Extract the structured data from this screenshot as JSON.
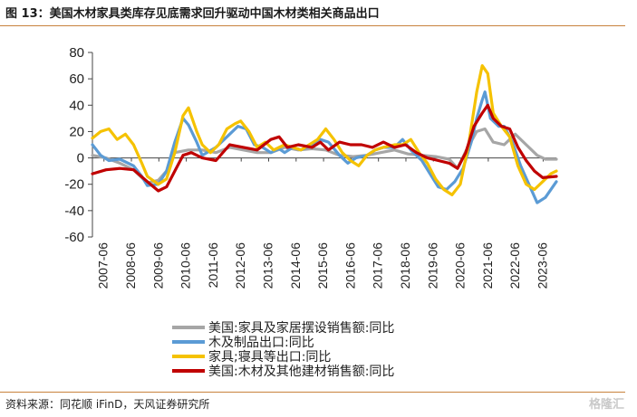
{
  "header": {
    "title": "图 13：美国木材家具类库存见底需求回升驱动中国木材类相关商品出口"
  },
  "footer": {
    "source": "资料来源：同花顺 iFinD，天风证券研究所",
    "watermark": "格隆汇"
  },
  "chart_data": {
    "type": "line",
    "title": "图 13：美国木材家具类库存见底需求回升驱动中国木材类相关商品出口",
    "xlabel": "",
    "ylabel": "",
    "ylim": [
      -60,
      80
    ],
    "yticks": [
      -60,
      -40,
      -20,
      0,
      20,
      40,
      60,
      80
    ],
    "x_tick_labels": [
      "2007-06",
      "2008-06",
      "2009-06",
      "2010-06",
      "2011-06",
      "2012-06",
      "2013-06",
      "2014-06",
      "2015-06",
      "2016-06",
      "2017-06",
      "2018-06",
      "2019-06",
      "2020-06",
      "2021-06",
      "2022-06",
      "2023-06"
    ],
    "xlim": [
      2007.0,
      2023.9
    ],
    "grid": false,
    "legend_position": "bottom",
    "series": [
      {
        "name": "美国:家具及家居摆设销售额:同比",
        "color": "#a6a6a6",
        "points": [
          [
            2007.0,
            2
          ],
          [
            2007.5,
            0
          ],
          [
            2008.0,
            -4
          ],
          [
            2008.5,
            -9
          ],
          [
            2009.0,
            -19
          ],
          [
            2009.4,
            -17
          ],
          [
            2009.7,
            -10
          ],
          [
            2010.0,
            4
          ],
          [
            2010.5,
            6
          ],
          [
            2011.0,
            6
          ],
          [
            2011.5,
            4
          ],
          [
            2012.0,
            8
          ],
          [
            2012.5,
            6
          ],
          [
            2013.0,
            4
          ],
          [
            2013.5,
            4
          ],
          [
            2014.0,
            8
          ],
          [
            2014.5,
            6
          ],
          [
            2015.0,
            7
          ],
          [
            2015.5,
            6
          ],
          [
            2016.0,
            2
          ],
          [
            2016.5,
            1
          ],
          [
            2017.0,
            2
          ],
          [
            2017.5,
            4
          ],
          [
            2018.0,
            6
          ],
          [
            2018.5,
            3
          ],
          [
            2019.0,
            2
          ],
          [
            2019.5,
            1
          ],
          [
            2020.0,
            -1
          ],
          [
            2020.3,
            -8
          ],
          [
            2020.6,
            5
          ],
          [
            2021.0,
            20
          ],
          [
            2021.3,
            22
          ],
          [
            2021.6,
            12
          ],
          [
            2022.0,
            10
          ],
          [
            2022.4,
            18
          ],
          [
            2022.8,
            10
          ],
          [
            2023.2,
            2
          ],
          [
            2023.5,
            -1
          ],
          [
            2023.9,
            -1
          ]
        ]
      },
      {
        "name": "木及制品出口:同比",
        "color": "#5b9bd5",
        "points": [
          [
            2007.0,
            10
          ],
          [
            2007.3,
            2
          ],
          [
            2007.6,
            -2
          ],
          [
            2008.0,
            -1
          ],
          [
            2008.5,
            -6
          ],
          [
            2008.8,
            -14
          ],
          [
            2009.0,
            -21
          ],
          [
            2009.4,
            -20
          ],
          [
            2009.7,
            -10
          ],
          [
            2010.0,
            12
          ],
          [
            2010.3,
            30
          ],
          [
            2010.5,
            25
          ],
          [
            2010.8,
            12
          ],
          [
            2011.0,
            2
          ],
          [
            2011.5,
            8
          ],
          [
            2011.8,
            14
          ],
          [
            2012.0,
            18
          ],
          [
            2012.3,
            24
          ],
          [
            2012.6,
            22
          ],
          [
            2012.9,
            10
          ],
          [
            2013.2,
            8
          ],
          [
            2013.5,
            4
          ],
          [
            2013.8,
            7
          ],
          [
            2014.0,
            4
          ],
          [
            2014.3,
            8
          ],
          [
            2014.6,
            6
          ],
          [
            2015.0,
            10
          ],
          [
            2015.3,
            14
          ],
          [
            2015.6,
            12
          ],
          [
            2016.0,
            2
          ],
          [
            2016.3,
            -4
          ],
          [
            2016.6,
            0
          ],
          [
            2017.0,
            2
          ],
          [
            2017.3,
            6
          ],
          [
            2017.6,
            8
          ],
          [
            2018.0,
            8
          ],
          [
            2018.3,
            14
          ],
          [
            2018.6,
            6
          ],
          [
            2019.0,
            -2
          ],
          [
            2019.3,
            -12
          ],
          [
            2019.6,
            -22
          ],
          [
            2019.9,
            -24
          ],
          [
            2020.2,
            -18
          ],
          [
            2020.5,
            -8
          ],
          [
            2020.8,
            12
          ],
          [
            2021.0,
            30
          ],
          [
            2021.2,
            44
          ],
          [
            2021.3,
            50
          ],
          [
            2021.5,
            30
          ],
          [
            2021.8,
            24
          ],
          [
            2022.0,
            24
          ],
          [
            2022.3,
            12
          ],
          [
            2022.6,
            -6
          ],
          [
            2022.9,
            -20
          ],
          [
            2023.2,
            -34
          ],
          [
            2023.5,
            -30
          ],
          [
            2023.9,
            -18
          ]
        ]
      },
      {
        "name": "家具;寝具等出口:同比",
        "color": "#f5c200",
        "points": [
          [
            2007.0,
            15
          ],
          [
            2007.3,
            20
          ],
          [
            2007.6,
            22
          ],
          [
            2007.9,
            14
          ],
          [
            2008.2,
            18
          ],
          [
            2008.5,
            10
          ],
          [
            2008.8,
            -4
          ],
          [
            2009.0,
            -14
          ],
          [
            2009.4,
            -20
          ],
          [
            2009.7,
            -16
          ],
          [
            2010.0,
            4
          ],
          [
            2010.3,
            32
          ],
          [
            2010.5,
            38
          ],
          [
            2010.8,
            20
          ],
          [
            2011.0,
            10
          ],
          [
            2011.3,
            4
          ],
          [
            2011.6,
            10
          ],
          [
            2011.9,
            22
          ],
          [
            2012.2,
            26
          ],
          [
            2012.4,
            28
          ],
          [
            2012.7,
            20
          ],
          [
            2013.0,
            8
          ],
          [
            2013.3,
            12
          ],
          [
            2013.6,
            6
          ],
          [
            2014.0,
            10
          ],
          [
            2014.3,
            8
          ],
          [
            2014.6,
            6
          ],
          [
            2014.9,
            10
          ],
          [
            2015.2,
            14
          ],
          [
            2015.5,
            22
          ],
          [
            2015.8,
            14
          ],
          [
            2016.1,
            4
          ],
          [
            2016.4,
            -2
          ],
          [
            2016.7,
            -6
          ],
          [
            2017.0,
            2
          ],
          [
            2017.3,
            6
          ],
          [
            2017.6,
            8
          ],
          [
            2018.0,
            10
          ],
          [
            2018.3,
            10
          ],
          [
            2018.6,
            14
          ],
          [
            2018.9,
            4
          ],
          [
            2019.2,
            -4
          ],
          [
            2019.5,
            -16
          ],
          [
            2019.8,
            -24
          ],
          [
            2020.1,
            -28
          ],
          [
            2020.4,
            -20
          ],
          [
            2020.7,
            10
          ],
          [
            2021.0,
            50
          ],
          [
            2021.2,
            70
          ],
          [
            2021.4,
            64
          ],
          [
            2021.6,
            34
          ],
          [
            2021.9,
            24
          ],
          [
            2022.2,
            16
          ],
          [
            2022.5,
            -6
          ],
          [
            2022.8,
            -20
          ],
          [
            2023.1,
            -24
          ],
          [
            2023.4,
            -18
          ],
          [
            2023.7,
            -12
          ],
          [
            2023.9,
            -10
          ]
        ]
      },
      {
        "name": "美国:木材及其他建材销售额:同比",
        "color": "#c00000",
        "points": [
          [
            2007.0,
            -12
          ],
          [
            2007.5,
            -9
          ],
          [
            2008.0,
            -8
          ],
          [
            2008.5,
            -9
          ],
          [
            2009.0,
            -18
          ],
          [
            2009.4,
            -25
          ],
          [
            2009.7,
            -22
          ],
          [
            2010.0,
            -10
          ],
          [
            2010.3,
            2
          ],
          [
            2010.6,
            4
          ],
          [
            2011.0,
            0
          ],
          [
            2011.5,
            -2
          ],
          [
            2012.0,
            10
          ],
          [
            2012.5,
            8
          ],
          [
            2013.0,
            6
          ],
          [
            2013.5,
            14
          ],
          [
            2013.8,
            16
          ],
          [
            2014.1,
            8
          ],
          [
            2014.5,
            10
          ],
          [
            2015.0,
            8
          ],
          [
            2015.3,
            12
          ],
          [
            2015.6,
            6
          ],
          [
            2016.0,
            12
          ],
          [
            2016.4,
            10
          ],
          [
            2016.8,
            10
          ],
          [
            2017.2,
            8
          ],
          [
            2017.6,
            12
          ],
          [
            2018.0,
            8
          ],
          [
            2018.4,
            10
          ],
          [
            2018.8,
            4
          ],
          [
            2019.2,
            0
          ],
          [
            2019.6,
            -2
          ],
          [
            2020.0,
            -4
          ],
          [
            2020.3,
            -8
          ],
          [
            2020.6,
            4
          ],
          [
            2020.9,
            24
          ],
          [
            2021.2,
            34
          ],
          [
            2021.4,
            40
          ],
          [
            2021.6,
            30
          ],
          [
            2021.9,
            24
          ],
          [
            2022.2,
            22
          ],
          [
            2022.5,
            8
          ],
          [
            2022.8,
            -2
          ],
          [
            2023.1,
            -10
          ],
          [
            2023.4,
            -15
          ],
          [
            2023.9,
            -14
          ]
        ]
      }
    ]
  }
}
